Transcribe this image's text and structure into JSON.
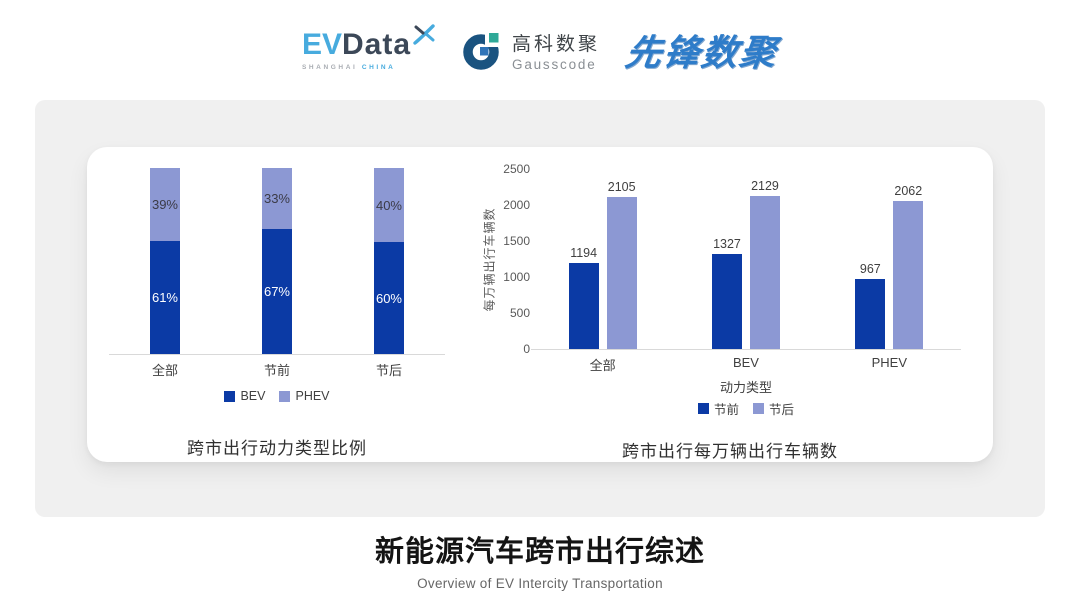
{
  "header": {
    "evdata": {
      "ev": "EV",
      "data": "Data",
      "sub_left": "SHANGHAI",
      "sub_right": "CHINA",
      "blue": "#47ABDE",
      "dark": "#3C4858"
    },
    "gausscode": {
      "cn": "高科数聚",
      "en": "Gausscode",
      "dark_blue": "#1A5380",
      "teal": "#2FA998",
      "mid_blue": "#2F74B8"
    },
    "xianfeng": {
      "text": "先锋数聚",
      "blue": "#2E7CC9"
    }
  },
  "chart_data": [
    {
      "type": "bar",
      "variant": "stacked-percent",
      "title": "跨市出行动力类型比例",
      "categories": [
        "全部",
        "节前",
        "节后"
      ],
      "unit": "%",
      "ylim": [
        0,
        100
      ],
      "grid": false,
      "legend_position": "bottom",
      "series": [
        {
          "name": "BEV",
          "values": [
            61,
            67,
            60
          ],
          "color": "#0B3AA5",
          "label_color": "#FFFFFF"
        },
        {
          "name": "PHEV",
          "values": [
            39,
            33,
            40
          ],
          "color": "#8C98D3",
          "label_color": "#3B3B47"
        }
      ]
    },
    {
      "type": "bar",
      "variant": "grouped",
      "title": "跨市出行每万辆出行车辆数",
      "categories": [
        "全部",
        "BEV",
        "PHEV"
      ],
      "xlabel": "动力类型",
      "ylabel": "每万辆出行车辆数",
      "ylim": [
        0,
        2500
      ],
      "yticks": [
        0,
        500,
        1000,
        1500,
        2000,
        2500
      ],
      "grid": false,
      "legend_position": "bottom",
      "series": [
        {
          "name": "节前",
          "values": [
            1194,
            1327,
            967
          ],
          "color": "#0B3AA5"
        },
        {
          "name": "节后",
          "values": [
            2105,
            2129,
            2062
          ],
          "color": "#8C98D3"
        }
      ]
    }
  ],
  "footer": {
    "title": "新能源汽车跨市出行综述",
    "subtitle": "Overview of EV Intercity Transportation"
  }
}
